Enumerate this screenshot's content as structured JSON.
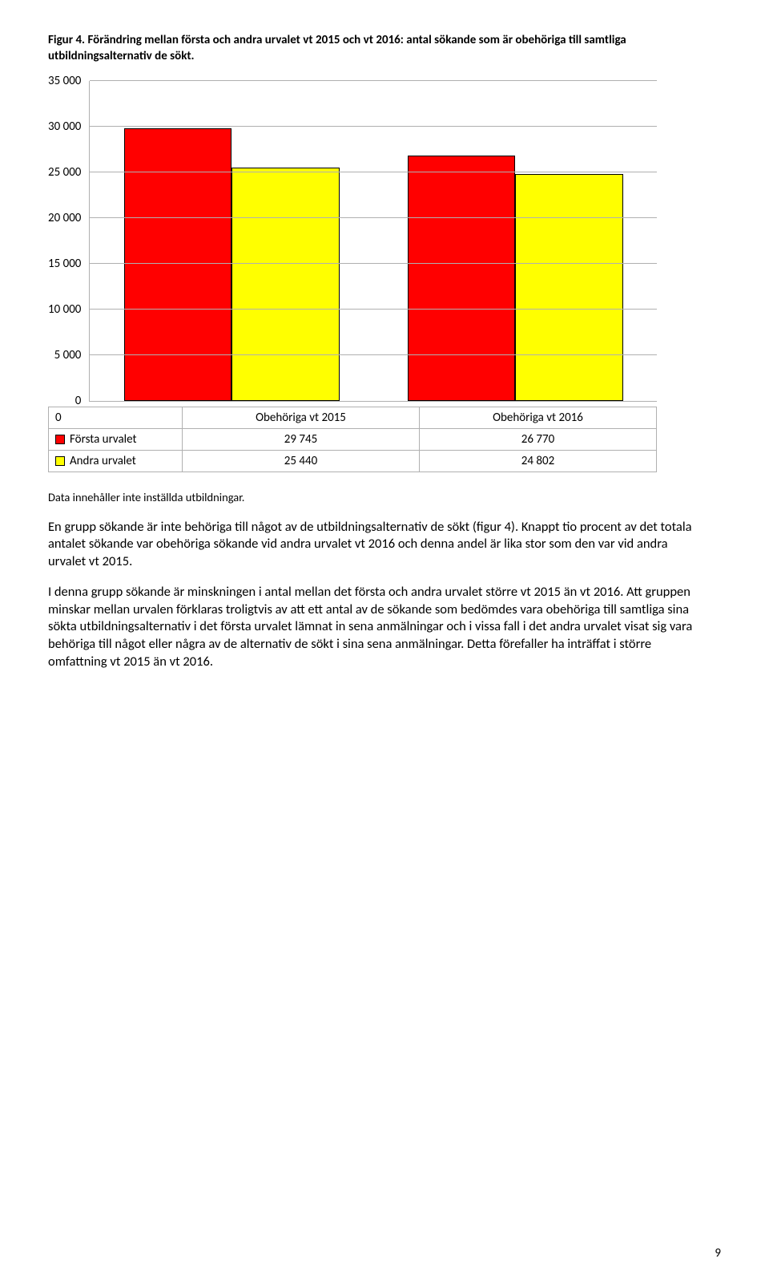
{
  "caption": "Figur 4. Förändring mellan första och andra urvalet vt 2015 och vt 2016: antal sökande som är obehöriga till samtliga utbildningsalternativ de sökt.",
  "chart": {
    "type": "bar",
    "ylim": [
      0,
      35000
    ],
    "ytick_step": 5000,
    "ytick_labels": [
      "35 000",
      "30 000",
      "25 000",
      "20 000",
      "15 000",
      "10 000",
      "5 000",
      "0"
    ],
    "categories": [
      "Obehöriga vt 2015",
      "Obehöriga vt 2016"
    ],
    "series": [
      {
        "name": "Första urvalet",
        "color": "#ff0000",
        "values": [
          29745,
          26770
        ],
        "display": [
          "29 745",
          "26 770"
        ]
      },
      {
        "name": "Andra urvalet",
        "color": "#ffff00",
        "values": [
          25440,
          24802
        ],
        "display": [
          "25 440",
          "24 802"
        ]
      }
    ],
    "grid_color": "#b0b0b0",
    "background_color": "#ffffff"
  },
  "zero_label": "0",
  "note": "Data innehåller inte inställda utbildningar.",
  "paragraphs": [
    "En grupp sökande är inte behöriga till något av de utbildningsalternativ de sökt (figur 4). Knappt tio procent av det totala antalet sökande var obehöriga sökande vid andra urvalet vt 2016 och denna andel är lika stor som den var vid andra urvalet vt 2015.",
    "I denna grupp sökande är minskningen i antal mellan det första och andra urvalet större vt 2015 än vt 2016. Att gruppen minskar mellan urvalen förklaras troligtvis av att ett antal av de sökande som bedömdes vara obehöriga till samtliga sina sökta utbildningsalternativ i det första urvalet lämnat in sena anmälningar och i vissa fall i det andra urvalet visat sig vara behöriga till något eller några av de alternativ de sökt i sina sena anmälningar. Detta förefaller ha inträffat i större omfattning vt 2015 än vt 2016."
  ],
  "page_number": "9"
}
